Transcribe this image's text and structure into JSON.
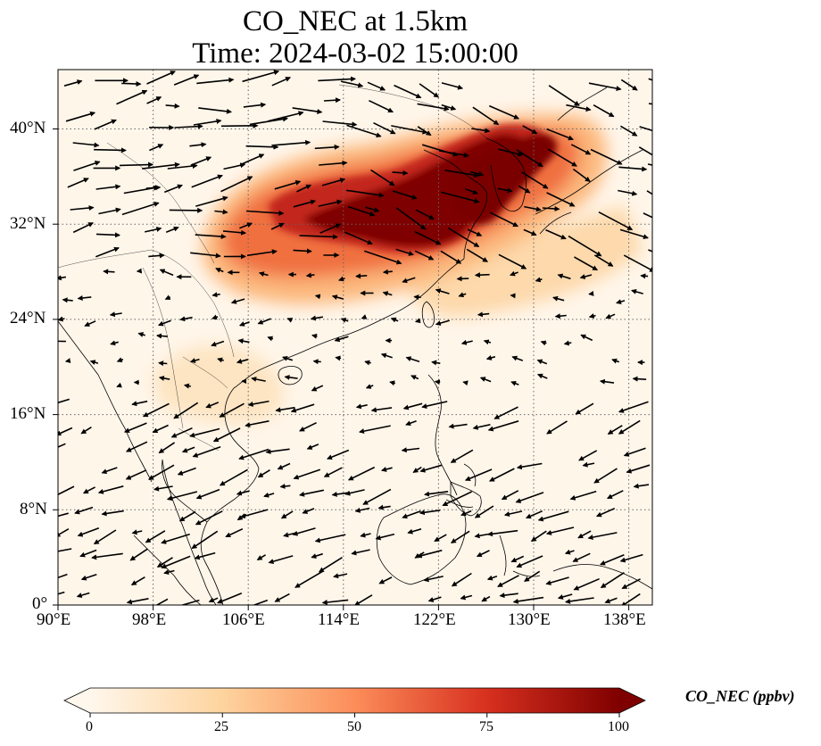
{
  "title": {
    "line1": "CO_NEC at 1.5km",
    "line2": "Time: 2024-03-02 15:00:00"
  },
  "map": {
    "lon_range": [
      90,
      140
    ],
    "lat_range": [
      0,
      45
    ],
    "lon_ticks": [
      "90°E",
      "98°E",
      "106°E",
      "114°E",
      "122°E",
      "130°E",
      "138°E"
    ],
    "lat_ticks": [
      "0°",
      "8°N",
      "16°N",
      "24°N",
      "32°N",
      "40°N"
    ],
    "gridlines": "dotted",
    "variable": "CO_NEC",
    "height": "1.5km",
    "wind_vectors": "black arrows"
  },
  "colorbar": {
    "label": "CO_NEC (ppbv)",
    "ticks": [
      "0",
      "25",
      "50",
      "75",
      "100"
    ],
    "range": [
      0,
      100
    ],
    "colormap": "OrRd",
    "extend": "both",
    "colors": [
      "#fff7ec",
      "#fdd49e",
      "#fc8d59",
      "#d7301f",
      "#7f0000"
    ]
  }
}
